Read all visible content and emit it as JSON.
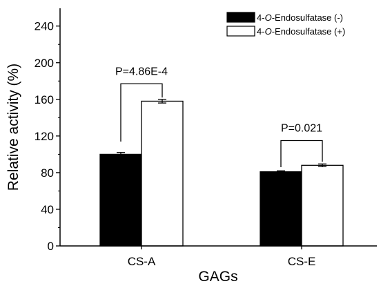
{
  "chart_data": {
    "type": "bar",
    "xlabel": "GAGs",
    "ylabel": "Relative activity (%)",
    "ylim": [
      0,
      260
    ],
    "yticks": [
      0,
      40,
      80,
      120,
      160,
      200,
      240
    ],
    "categories": [
      "CS-A",
      "CS-E"
    ],
    "series": [
      {
        "name": "4-O-Endosulfatase (-)",
        "name_parts": [
          "4-",
          "O",
          "-Endosulfatase (-)"
        ],
        "fill": "#000000",
        "values": [
          100,
          81
        ],
        "errors": [
          2,
          1
        ]
      },
      {
        "name": "4-O-Endosulfatase (+)",
        "name_parts": [
          "4-",
          "O",
          "-Endosulfatase (+)"
        ],
        "fill": "#ffffff",
        "values": [
          158,
          88
        ],
        "errors": [
          2,
          1.5
        ]
      }
    ],
    "annotations": [
      {
        "category": "CS-A",
        "text": "P=4.86E-4",
        "bracket_top": 177,
        "left_leg_bottom": 114,
        "right_leg_bottom": 162
      },
      {
        "category": "CS-E",
        "text": "P=0.021",
        "bracket_top": 115,
        "left_leg_bottom": 86,
        "right_leg_bottom": 92
      }
    ],
    "legend_position": "top-right",
    "grid": false
  }
}
